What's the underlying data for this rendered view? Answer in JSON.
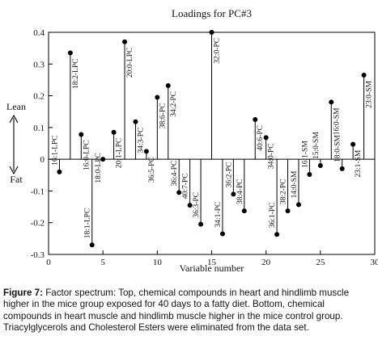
{
  "figure": {
    "caption_label": "Figure 7:",
    "caption_text": "Factor spectrum: Top, chemical compounds in heart and hindlimb muscle higher in the mice group exposed for 40 days to a fatty diet. Bottom, chemical compounds in heart muscle and hindlimb muscle higher in the mice control group. Triacylglycerols and Cholesterol Esters were eliminated from the data set."
  },
  "chart_data": {
    "type": "scatter",
    "style": "stem",
    "title": "Loadings for PC#3",
    "xlabel": "Variable number",
    "ylabel": "",
    "xlim": [
      0,
      30
    ],
    "ylim": [
      -0.3,
      0.4
    ],
    "xticks": [
      0,
      5,
      10,
      15,
      20,
      25,
      30
    ],
    "yticks": [
      -0.3,
      -0.2,
      -0.1,
      0,
      0.1,
      0.2,
      0.3,
      0.4
    ],
    "ytick_labels": [
      "-0.3",
      "-0.2",
      "-0.1",
      "0",
      "0.1",
      "0.2",
      "0.3",
      "0.4"
    ],
    "grid": false,
    "side_labels": {
      "up": "Lean",
      "down": "Fat"
    },
    "points": [
      {
        "x": 1,
        "y": -0.04,
        "label": "16:1-LPC"
      },
      {
        "x": 2,
        "y": 0.335,
        "label": "18:2-LPC"
      },
      {
        "x": 3,
        "y": 0.078,
        "label": "16:0-LPC"
      },
      {
        "x": 4,
        "y": -0.27,
        "label": "18:1-LPC"
      },
      {
        "x": 5,
        "y": 0.0,
        "label": "18:0-LPC"
      },
      {
        "x": 6,
        "y": 0.085,
        "label": "20:1-LPC"
      },
      {
        "x": 7,
        "y": 0.37,
        "label": "20:0-LPC"
      },
      {
        "x": 8,
        "y": 0.118,
        "label": "34:3-PC"
      },
      {
        "x": 9,
        "y": 0.025,
        "label": "36:5-PC"
      },
      {
        "x": 10,
        "y": 0.195,
        "label": "38:6-PC"
      },
      {
        "x": 11,
        "y": 0.232,
        "label": "34:2-PC"
      },
      {
        "x": 12,
        "y": -0.105,
        "label": "36:4-PC"
      },
      {
        "x": 13,
        "y": -0.145,
        "label": "40:7-PC"
      },
      {
        "x": 14,
        "y": -0.205,
        "label": "36:3-PC"
      },
      {
        "x": 15,
        "y": 0.4,
        "label": "32:0-PC"
      },
      {
        "x": 16,
        "y": -0.235,
        "label": "34:1-PC"
      },
      {
        "x": 17,
        "y": -0.11,
        "label": "36:2-PC"
      },
      {
        "x": 18,
        "y": -0.163,
        "label": "38:4-PC"
      },
      {
        "x": 19,
        "y": 0.125,
        "label": "40:6-PC"
      },
      {
        "x": 20,
        "y": 0.068,
        "label": "34:0-PC"
      },
      {
        "x": 21,
        "y": -0.237,
        "label": "36:1-PC"
      },
      {
        "x": 22,
        "y": -0.163,
        "label": "38:2-PC"
      },
      {
        "x": 23,
        "y": -0.143,
        "label": "14:0-SM"
      },
      {
        "x": 24,
        "y": -0.048,
        "label": "16:1-SM"
      },
      {
        "x": 25,
        "y": -0.02,
        "label": "15:0-SM"
      },
      {
        "x": 26,
        "y": 0.18,
        "label": "16:0-SM"
      },
      {
        "x": 27,
        "y": -0.03,
        "label": "18:0-SM"
      },
      {
        "x": 28,
        "y": 0.047,
        "label": "23:1-SM"
      },
      {
        "x": 29,
        "y": 0.265,
        "label": "23:0-SM"
      }
    ]
  }
}
